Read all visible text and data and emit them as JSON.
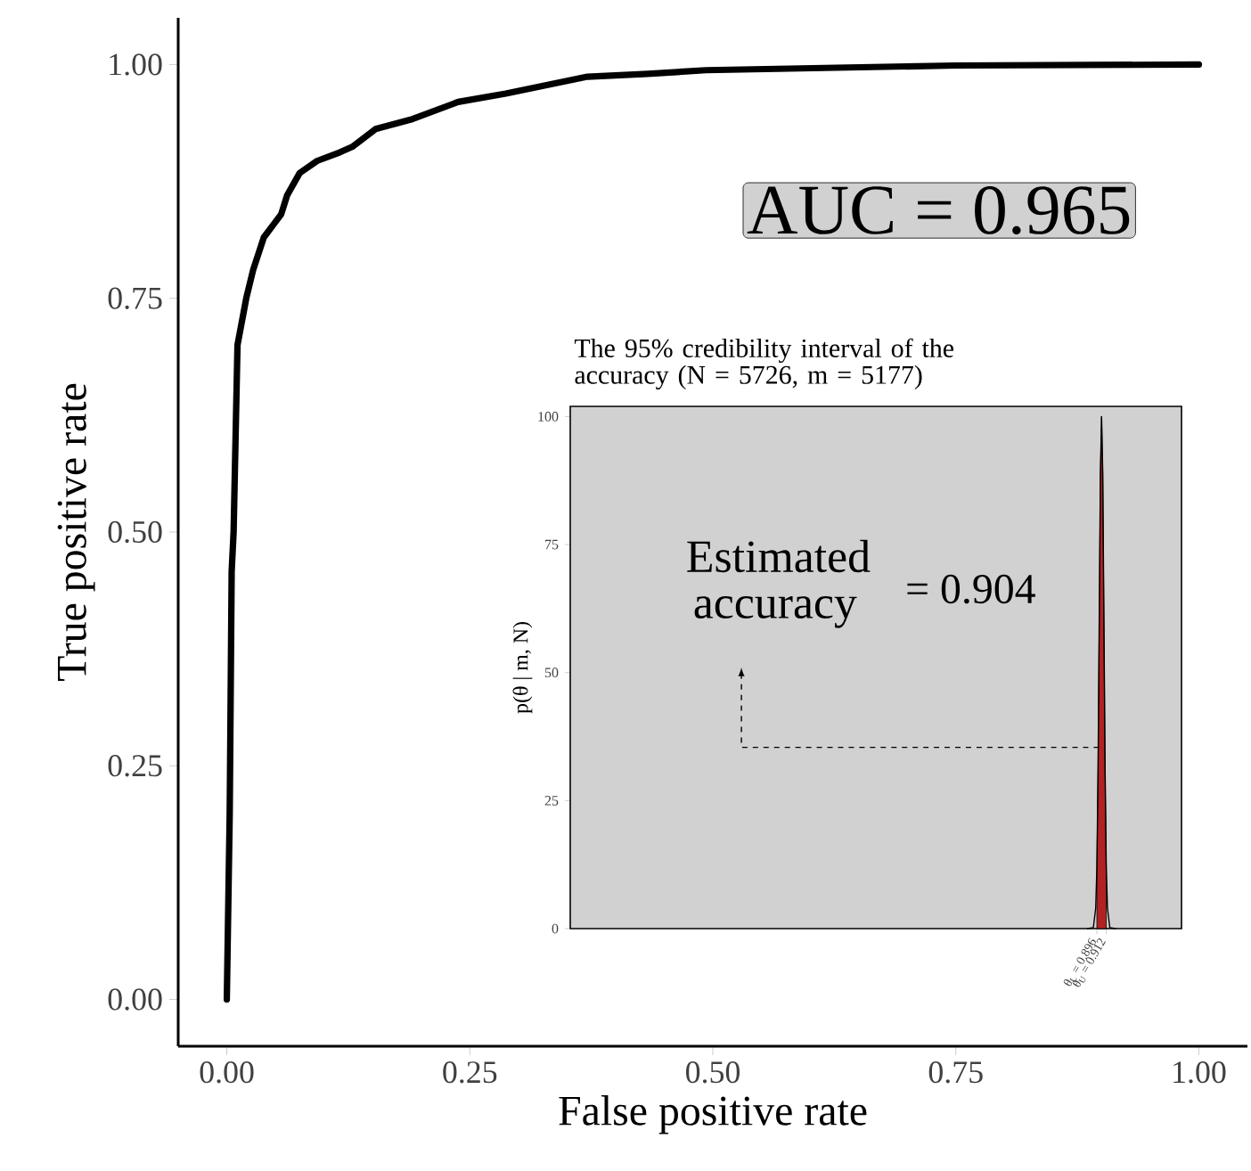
{
  "chart_data": [
    {
      "type": "line",
      "xlabel": "False positive rate",
      "ylabel": "True positive rate",
      "color": "#000000",
      "x": [
        0,
        0.003,
        0.005,
        0.007,
        0.011,
        0.02,
        0.027,
        0.038,
        0.056,
        0.062,
        0.075,
        0.093,
        0.116,
        0.129,
        0.153,
        0.189,
        0.238,
        0.287,
        0.371,
        0.433,
        0.493,
        0.75,
        1.0
      ],
      "values": [
        0,
        0.2,
        0.458,
        0.5,
        0.7,
        0.75,
        0.78,
        0.815,
        0.84,
        0.86,
        0.884,
        0.897,
        0.906,
        0.912,
        0.931,
        0.941,
        0.96,
        0.969,
        0.987,
        0.99,
        0.994,
        0.999,
        1.0
      ],
      "xlim": [
        -0.05,
        1.05
      ],
      "ylim": [
        -0.05,
        1.05
      ],
      "xticks": [
        {
          "value": 0,
          "label": "0.00"
        },
        {
          "value": 0.25,
          "label": "0.25"
        },
        {
          "value": 0.5,
          "label": "0.50"
        },
        {
          "value": 0.75,
          "label": "0.75"
        },
        {
          "value": 1,
          "label": "1.00"
        }
      ],
      "yticks": [
        {
          "value": 0,
          "label": "0.00"
        },
        {
          "value": 0.25,
          "label": "0.25"
        },
        {
          "value": 0.5,
          "label": "0.50"
        },
        {
          "value": 0.75,
          "label": "0.75"
        },
        {
          "value": 1,
          "label": "1.00"
        }
      ],
      "annotations": [
        "AUC = 0.965"
      ]
    },
    {
      "type": "line",
      "title": "The 95% credibility interval of the accuracy (N = 5726, m = 5177)",
      "ylabel": "p(θ | m, N)",
      "series": [
        {
          "type": "area",
          "color": "#b22222",
          "x": [
            0.896,
            0.898,
            0.9,
            0.902,
            0.904,
            0.906,
            0.908,
            0.91,
            0.912
          ],
          "values": [
            12,
            31,
            60,
            89,
            100,
            89,
            60,
            31,
            12
          ]
        },
        {
          "type": "line",
          "color": "#000000",
          "x": [
            0.88,
            0.89,
            0.894,
            0.896,
            0.898,
            0.9,
            0.902,
            0.904,
            0.906,
            0.908,
            0.91,
            0.912,
            0.914,
            0.918,
            0.928
          ],
          "values": [
            0,
            0.2,
            4,
            12,
            31,
            60,
            89,
            100,
            89,
            60,
            31,
            12,
            4,
            0.2,
            0
          ]
        }
      ],
      "xlim": [
        0,
        1.04
      ],
      "ylim": [
        0,
        102
      ],
      "xticks": [
        {
          "value": 0.896,
          "label": "θ$_{L}$ = 0.896"
        },
        {
          "value": 0.912,
          "label": "θ$_{U}$ = 0.912"
        }
      ],
      "yticks": [
        0,
        25,
        50,
        75,
        100
      ],
      "annotations": [
        "Estimated accuracy",
        "= 0.904"
      ]
    }
  ]
}
